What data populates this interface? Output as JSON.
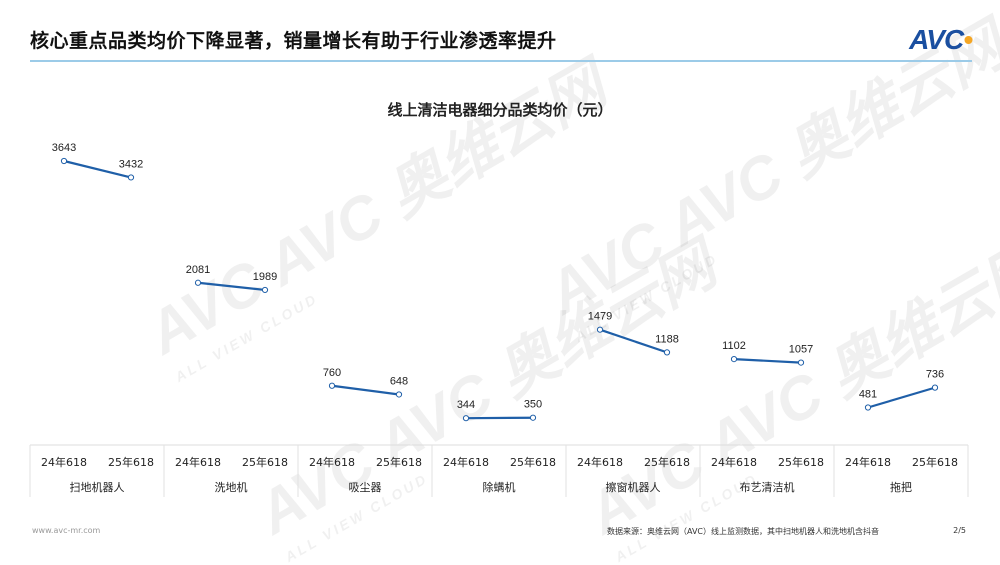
{
  "header": {
    "title": "核心重点品类均价下降显著，销量增长有助于行业渗透率提升",
    "logo": "AVC"
  },
  "watermark": {
    "text": "AVC 奥维云网",
    "sub": "ALL VIEW CLOUD"
  },
  "colors": {
    "line": "#1f5fa8",
    "rule": "#9ccbe8",
    "brand": "#1a4fa0",
    "accent": "#f5a623"
  },
  "chart_data": {
    "type": "line",
    "title": "线上清洁电器细分品类均价（元）",
    "period_labels": [
      "24年618",
      "25年618"
    ],
    "categories": [
      "扫地机器人",
      "洗地机",
      "吸尘器",
      "除螨机",
      "擦窗机器人",
      "布艺清洁机",
      "拖把"
    ],
    "values": [
      [
        3643,
        3432
      ],
      [
        2081,
        1989
      ],
      [
        760,
        648
      ],
      [
        344,
        350
      ],
      [
        1479,
        1188
      ],
      [
        1102,
        1057
      ],
      [
        481,
        736
      ]
    ],
    "ylim": [
      0,
      3643
    ],
    "grid": false,
    "legend": "none"
  },
  "footer": {
    "website": "www.avc-mr.com",
    "source": "数据来源：奥维云网（AVC）线上监测数据，其中扫地机器人和洗地机含抖音",
    "page": "2/5"
  }
}
